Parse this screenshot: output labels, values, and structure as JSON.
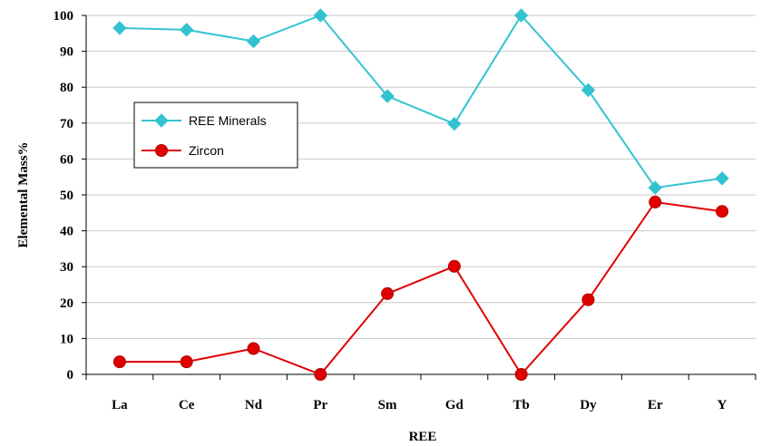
{
  "chart_data": {
    "type": "line",
    "title": "",
    "xlabel": "REE",
    "ylabel": "Elemental Mass%",
    "categories": [
      "La",
      "Ce",
      "Nd",
      "Pr",
      "Sm",
      "Gd",
      "Tb",
      "Dy",
      "Er",
      "Y"
    ],
    "ylim": [
      0,
      100
    ],
    "yticks": [
      0,
      10,
      20,
      30,
      40,
      50,
      60,
      70,
      80,
      90,
      100
    ],
    "grid": true,
    "legend_position": "left-center",
    "series": [
      {
        "name": "REE Minerals",
        "color": "#33C3D0",
        "marker": "diamond",
        "values": [
          96.5,
          96,
          92.8,
          100,
          77.5,
          69.8,
          100,
          79.2,
          52,
          54.6
        ]
      },
      {
        "name": "Zircon",
        "color": "#E00000",
        "marker": "circle",
        "values": [
          3.5,
          3.5,
          7.2,
          0,
          22.5,
          30.1,
          0,
          20.8,
          48,
          45.4
        ]
      }
    ]
  }
}
